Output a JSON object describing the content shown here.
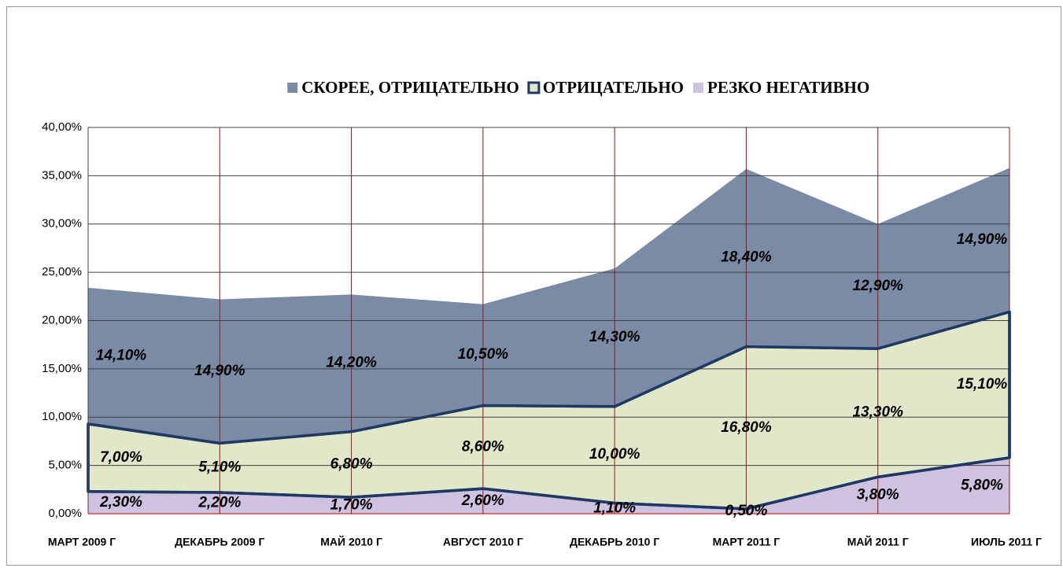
{
  "chart_data": {
    "type": "stacked_area",
    "categories": [
      "МАРТ 2009 Г",
      "ДЕКАБРЬ 2009 Г",
      "МАЙ 2010 Г",
      "АВГУСТ 2010 Г",
      "ДЕКАБРЬ 2010 Г",
      "МАРТ 2011 Г",
      "МАЙ 2011 Г",
      "ИЮЛЬ 2011 Г"
    ],
    "series": [
      {
        "name": "РЕЗКО НЕГАТИВНО",
        "color": "#cfc1e0",
        "values": [
          2.3,
          2.2,
          1.7,
          2.6,
          1.1,
          0.5,
          3.8,
          5.8
        ],
        "value_labels": [
          "2,30%",
          "2,20%",
          "1,70%",
          "2,60%",
          "1,10%",
          "0,50%",
          "3,80%",
          "5,80%"
        ]
      },
      {
        "name": "ОТРИЦАТЕЛЬНО",
        "color": "#e1e8c9",
        "outline": "#1f3864",
        "values": [
          7.0,
          5.1,
          6.8,
          8.6,
          10.0,
          16.8,
          13.3,
          15.1
        ],
        "value_labels": [
          "7,00%",
          "5,10%",
          "6,80%",
          "8,60%",
          "10,00%",
          "16,80%",
          "13,30%",
          "15,10%"
        ]
      },
      {
        "name": "СКОРЕЕ, ОТРИЦАТЕЛЬНО",
        "color": "#7b8ba5",
        "values": [
          14.1,
          14.9,
          14.2,
          10.5,
          14.3,
          18.4,
          12.9,
          14.9
        ],
        "value_labels": [
          "14,10%",
          "14,90%",
          "14,20%",
          "10,50%",
          "14,30%",
          "18,40%",
          "12,90%",
          "14,90%"
        ]
      }
    ],
    "ylim": [
      0,
      40
    ],
    "yticks": [
      {
        "value": 0,
        "label": "0,00%"
      },
      {
        "value": 5,
        "label": "5,00%"
      },
      {
        "value": 10,
        "label": "10,00%"
      },
      {
        "value": 15,
        "label": "15,00%"
      },
      {
        "value": 20,
        "label": "20,00%"
      },
      {
        "value": 25,
        "label": "25,00%"
      },
      {
        "value": 30,
        "label": "30,00%"
      },
      {
        "value": 35,
        "label": "35,00%"
      },
      {
        "value": 40,
        "label": "40,00%"
      }
    ],
    "grid": true,
    "grid_color": "#404040",
    "vgrid_color": "#8b1a1a",
    "legend": "top"
  }
}
